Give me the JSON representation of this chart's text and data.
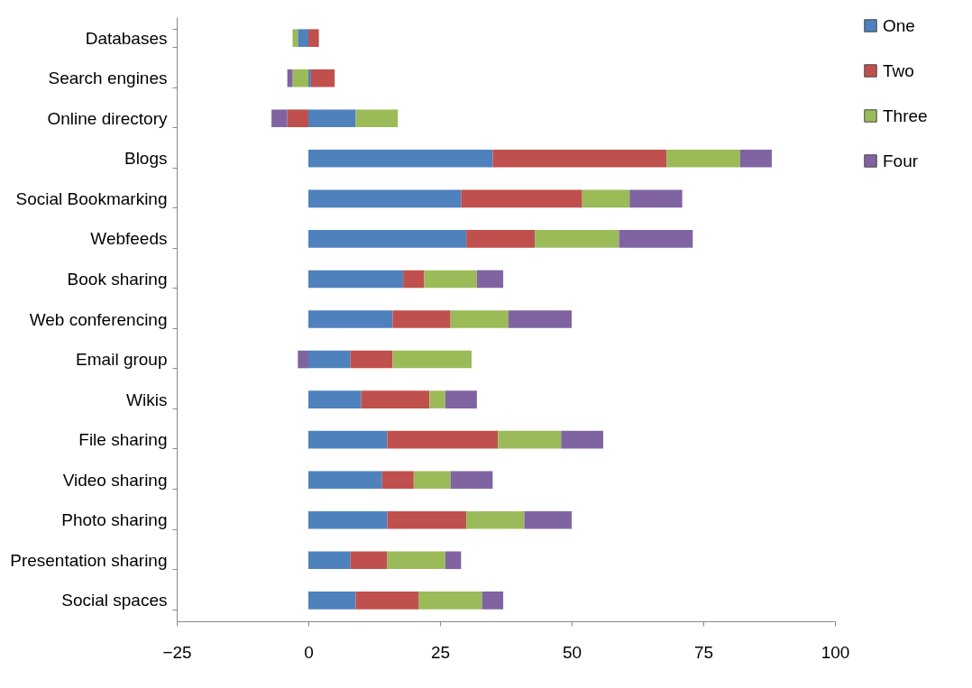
{
  "chart_data": {
    "type": "bar",
    "orientation": "horizontal",
    "stacked": true,
    "categories": [
      "Databases",
      "Search engines",
      "Online directory",
      "Blogs",
      "Social Bookmarking",
      "Webfeeds",
      "Book sharing",
      "Web conferencing",
      "Email group",
      "Wikis",
      "File sharing",
      "Video sharing",
      "Photo sharing",
      "Presentation sharing",
      "Social spaces"
    ],
    "series": [
      {
        "name": "One",
        "color": "#4f81bd",
        "values": [
          -2,
          0.5,
          9,
          35,
          29,
          30,
          18,
          16,
          8,
          10,
          15,
          14,
          15,
          8,
          9
        ]
      },
      {
        "name": "Two",
        "color": "#c0504d",
        "values": [
          2,
          4.5,
          -4,
          33,
          23,
          13,
          4,
          11,
          8,
          13,
          21,
          6,
          15,
          7,
          12
        ]
      },
      {
        "name": "Three",
        "color": "#9bbb59",
        "values": [
          -1,
          -3,
          8,
          14,
          9,
          16,
          10,
          11,
          15,
          3,
          12,
          7,
          11,
          11,
          12
        ]
      },
      {
        "name": "Four",
        "color": "#8064a2",
        "values": [
          null,
          -1,
          -3,
          6,
          10,
          14,
          5,
          12,
          -2,
          6,
          8,
          8,
          9,
          3,
          4
        ]
      }
    ],
    "xlim": [
      -25,
      100
    ],
    "xticks": [
      -25,
      0,
      25,
      50,
      75,
      100
    ],
    "grid": false,
    "legend": "right"
  }
}
